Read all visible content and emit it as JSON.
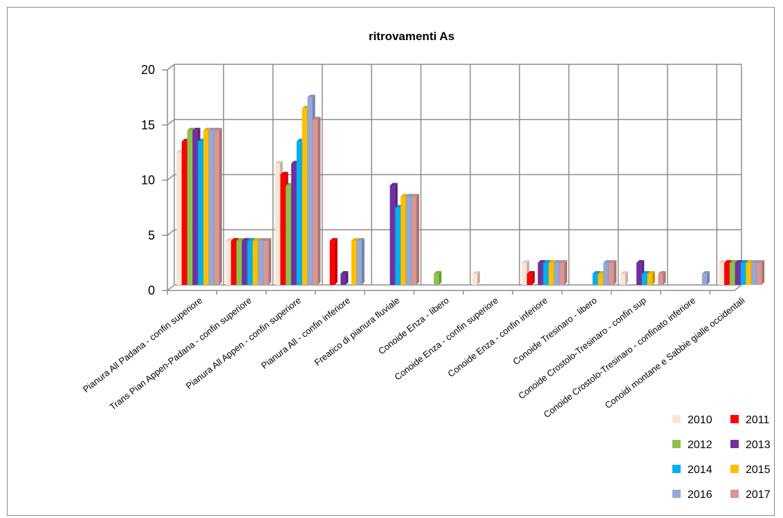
{
  "chart_data": {
    "type": "bar",
    "title": "ritrovamenti As",
    "xlabel": "",
    "ylabel": "",
    "ylim": [
      0,
      20
    ],
    "yticks": [
      "0",
      "5",
      "10",
      "15",
      "20"
    ],
    "grid": true,
    "legend_position": "bottom-right",
    "categories": [
      "Pianura All Padana - confin superiore",
      "Trans Pian Appen-Padana - confin superiore",
      "Pianura All Appen - confin superiore",
      "Pianura All - confin inferiore",
      "Freatico di pianura fluviale",
      "Conoide Enza - libero",
      "Conoide Enza - confin superiore",
      "Conoide Enza - confin inferiore",
      "Conoide Tresinaro - libero",
      "Conoide Crostolo-Tresinaro - confin sup",
      "Conoide Crostolo-Tresinaro - confinato inferiore",
      "Conoidi montane e Sabbie gialle occidentali"
    ],
    "series": [
      {
        "name": "2010",
        "color": "#fbe5d6",
        "values": [
          12,
          4,
          11,
          0,
          0,
          0,
          1,
          2,
          0,
          1,
          0,
          2
        ]
      },
      {
        "name": "2011",
        "color": "#ff0000",
        "values": [
          13,
          4,
          10,
          4,
          0,
          0,
          0,
          1,
          0,
          0,
          0,
          2
        ]
      },
      {
        "name": "2012",
        "color": "#8bc34a",
        "values": [
          14,
          4,
          9,
          0,
          0,
          1,
          0,
          0,
          0,
          0,
          0,
          2
        ]
      },
      {
        "name": "2013",
        "color": "#7030a0",
        "values": [
          14,
          4,
          11,
          1,
          9,
          0,
          0,
          2,
          0,
          2,
          0,
          2
        ]
      },
      {
        "name": "2014",
        "color": "#00b0f0",
        "values": [
          13,
          4,
          13,
          0,
          7,
          0,
          0,
          2,
          1,
          1,
          0,
          2
        ]
      },
      {
        "name": "2015",
        "color": "#ffc000",
        "values": [
          14,
          4,
          16,
          4,
          8,
          0,
          0,
          2,
          1,
          1,
          0,
          2
        ]
      },
      {
        "name": "2016",
        "color": "#95a9d6",
        "values": [
          14,
          4,
          17,
          4,
          8,
          0,
          0,
          2,
          2,
          0,
          1,
          2
        ]
      },
      {
        "name": "2017",
        "color": "#d99694",
        "values": [
          14,
          4,
          15,
          0,
          8,
          0,
          0,
          2,
          2,
          1,
          0,
          2
        ]
      }
    ]
  }
}
